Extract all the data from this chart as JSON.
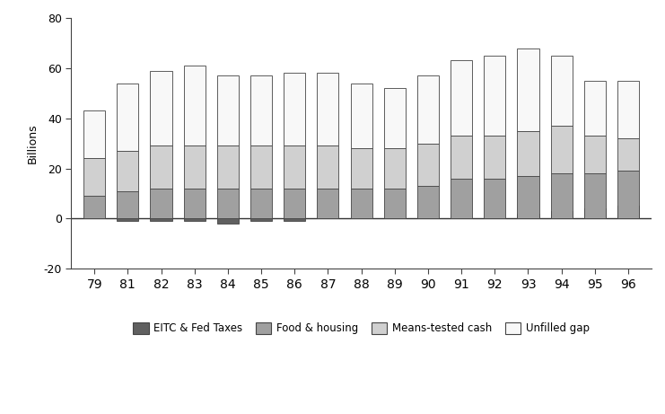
{
  "years": [
    "79",
    "81",
    "82",
    "83",
    "84",
    "85",
    "86",
    "87",
    "88",
    "89",
    "90",
    "91",
    "92",
    "93",
    "94",
    "95",
    "96"
  ],
  "eitc_fed_taxes": [
    0,
    -1,
    -1,
    -1,
    -2,
    -1,
    -1,
    0,
    0,
    0,
    0,
    0,
    0,
    2,
    3,
    4,
    5
  ],
  "food_housing": [
    9,
    11,
    12,
    12,
    12,
    12,
    12,
    12,
    12,
    12,
    13,
    16,
    16,
    17,
    18,
    18,
    19
  ],
  "means_tested_cash": [
    15,
    16,
    17,
    17,
    17,
    17,
    17,
    17,
    16,
    16,
    17,
    17,
    17,
    18,
    19,
    15,
    13
  ],
  "unfilled_gap": [
    19,
    27,
    30,
    32,
    28,
    28,
    29,
    29,
    26,
    24,
    27,
    30,
    32,
    33,
    28,
    22,
    23
  ],
  "colors": {
    "eitc_fed_taxes": "#606060",
    "food_housing": "#a0a0a0",
    "means_tested_cash": "#d0d0d0",
    "unfilled_gap": "#f8f8f8"
  },
  "ylabel": "Billions",
  "ylim": [
    -20,
    80
  ],
  "yticks": [
    -20,
    0,
    20,
    40,
    60,
    80
  ],
  "legend_labels": [
    "EITC & Fed Taxes",
    "Food & housing",
    "Means-tested cash",
    "Unfilled gap"
  ],
  "bar_width": 0.65,
  "edge_color": "#444444"
}
